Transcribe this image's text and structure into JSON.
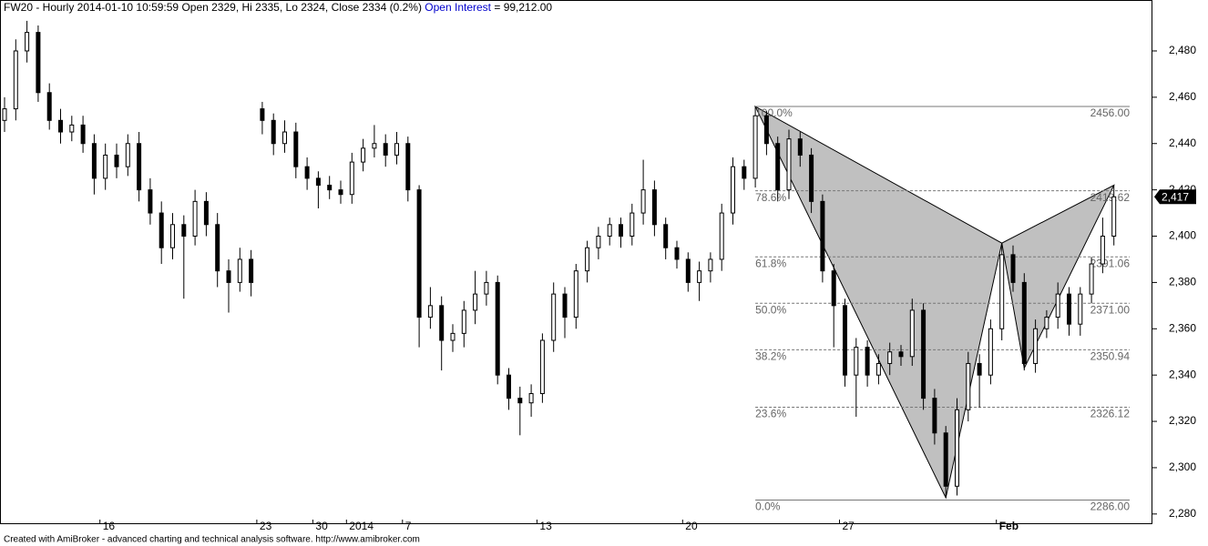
{
  "chart_data": {
    "type": "candlestick",
    "title": "FW20 - Hourly 2014-01-10 10:59:59 Open 2329, Hi 2335, Lo 2324, Close 2334 (0.2%)",
    "oi_label": "Open Interest",
    "oi_value": "= 99,212.00",
    "footer": "Created with AmiBroker - advanced charting and technical analysis software. http://www.amibroker.com",
    "categories": [
      null,
      null,
      null,
      null,
      null,
      null,
      null,
      null,
      null,
      "16",
      null,
      null,
      null,
      null,
      null,
      null,
      null,
      null,
      null,
      null,
      null,
      null,
      null,
      "23",
      null,
      null,
      null,
      null,
      "30",
      null,
      null,
      "2014",
      null,
      null,
      null,
      null,
      "7",
      null,
      null,
      null,
      null,
      null,
      null,
      null,
      null,
      null,
      null,
      null,
      "13",
      null,
      null,
      null,
      null,
      null,
      null,
      null,
      null,
      null,
      null,
      null,
      null,
      "20",
      null,
      null,
      null,
      null,
      null,
      null,
      null,
      null,
      null,
      null,
      null,
      null,
      null,
      "27",
      null,
      null,
      null,
      null,
      null,
      null,
      null,
      null,
      null,
      null,
      null,
      null,
      null,
      "Feb",
      null,
      null,
      null,
      null,
      null,
      null,
      null,
      null,
      null,
      null
    ],
    "open": [
      2450,
      2455,
      2480,
      2488,
      2462,
      2450,
      2445,
      2448,
      2440,
      2425,
      2435,
      2430,
      2440,
      2420,
      2410,
      2395,
      2405,
      2400,
      2415,
      2405,
      2385,
      2380,
      2390,
      2455,
      2450,
      2440,
      2445,
      2430,
      2425,
      2422,
      2420,
      2418,
      2432,
      2438,
      2440,
      2435,
      2440,
      2420,
      2365,
      2370,
      2355,
      2358,
      2368,
      2375,
      2380,
      2340,
      2330,
      2328,
      2332,
      2355,
      2375,
      2365,
      2385,
      2395,
      2400,
      2405,
      2400,
      2410,
      2420,
      2405,
      2395,
      2390,
      2380,
      2385,
      2390,
      2410,
      2430,
      2425,
      2452,
      2440,
      2420,
      2442,
      2435,
      2415,
      2385,
      2370,
      2340,
      2352,
      2340,
      2345,
      2350,
      2348,
      2368,
      2330,
      2315,
      2292,
      2325,
      2345,
      2340,
      2360,
      2392,
      2380,
      2345,
      2360,
      2365,
      2375,
      2362,
      2375,
      2388,
      2400
    ],
    "high": [
      2460,
      2485,
      2493,
      2491,
      2466,
      2455,
      2452,
      2452,
      2444,
      2440,
      2440,
      2444,
      2445,
      2425,
      2415,
      2410,
      2409,
      2420,
      2419,
      2410,
      2390,
      2395,
      2394,
      2458,
      2453,
      2450,
      2449,
      2434,
      2428,
      2426,
      2424,
      2436,
      2442,
      2448,
      2444,
      2445,
      2443,
      2422,
      2378,
      2374,
      2362,
      2372,
      2385,
      2385,
      2383,
      2343,
      2335,
      2336,
      2358,
      2380,
      2378,
      2388,
      2398,
      2404,
      2408,
      2408,
      2414,
      2433,
      2424,
      2408,
      2398,
      2393,
      2389,
      2393,
      2414,
      2434,
      2433,
      2456,
      2454,
      2443,
      2446,
      2445,
      2438,
      2418,
      2388,
      2373,
      2356,
      2355,
      2349,
      2354,
      2353,
      2373,
      2371,
      2334,
      2318,
      2330,
      2350,
      2349,
      2364,
      2397,
      2396,
      2384,
      2364,
      2368,
      2380,
      2378,
      2378,
      2391,
      2408,
      2422
    ],
    "low": [
      2445,
      2450,
      2475,
      2458,
      2446,
      2440,
      2441,
      2436,
      2418,
      2420,
      2425,
      2426,
      2415,
      2405,
      2388,
      2390,
      2373,
      2396,
      2400,
      2378,
      2367,
      2376,
      2374,
      2444,
      2435,
      2436,
      2425,
      2420,
      2412,
      2416,
      2414,
      2414,
      2428,
      2434,
      2430,
      2431,
      2415,
      2352,
      2360,
      2342,
      2350,
      2352,
      2362,
      2370,
      2336,
      2325,
      2314,
      2322,
      2328,
      2350,
      2356,
      2360,
      2380,
      2390,
      2396,
      2395,
      2396,
      2405,
      2400,
      2390,
      2386,
      2376,
      2372,
      2380,
      2385,
      2405,
      2420,
      2421,
      2435,
      2415,
      2416,
      2430,
      2410,
      2380,
      2352,
      2335,
      2322,
      2335,
      2336,
      2340,
      2344,
      2344,
      2325,
      2310,
      2287,
      2288,
      2320,
      2326,
      2336,
      2355,
      2376,
      2342,
      2341,
      2356,
      2360,
      2357,
      2357,
      2371,
      2384,
      2396
    ],
    "close": [
      2455,
      2480,
      2488,
      2462,
      2450,
      2445,
      2448,
      2440,
      2425,
      2435,
      2430,
      2440,
      2420,
      2410,
      2395,
      2405,
      2400,
      2415,
      2405,
      2385,
      2380,
      2390,
      2380,
      2450,
      2440,
      2445,
      2430,
      2425,
      2422,
      2420,
      2418,
      2432,
      2438,
      2440,
      2435,
      2440,
      2420,
      2365,
      2370,
      2355,
      2358,
      2368,
      2375,
      2380,
      2340,
      2330,
      2328,
      2332,
      2355,
      2375,
      2365,
      2385,
      2395,
      2400,
      2405,
      2400,
      2410,
      2420,
      2405,
      2395,
      2390,
      2380,
      2385,
      2390,
      2410,
      2430,
      2425,
      2452,
      2440,
      2420,
      2442,
      2435,
      2415,
      2385,
      2370,
      2340,
      2352,
      2340,
      2345,
      2350,
      2348,
      2368,
      2330,
      2315,
      2292,
      2325,
      2345,
      2340,
      2360,
      2392,
      2380,
      2345,
      2360,
      2365,
      2375,
      2362,
      2375,
      2388,
      2400,
      2417
    ],
    "color": "#000000",
    "ylim": [
      2276,
      2502
    ],
    "yticks": [
      {
        "value": 2280,
        "label": "2,280"
      },
      {
        "value": 2300,
        "label": "2,300"
      },
      {
        "value": 2320,
        "label": "2,320"
      },
      {
        "value": 2340,
        "label": "2,340"
      },
      {
        "value": 2360,
        "label": "2,360"
      },
      {
        "value": 2380,
        "label": "2,380"
      },
      {
        "value": 2400,
        "label": "2,400"
      },
      {
        "value": 2420,
        "label": "2,420"
      },
      {
        "value": 2440,
        "label": "2,440"
      },
      {
        "value": 2460,
        "label": "2,460"
      },
      {
        "value": 2480,
        "label": "2,480"
      }
    ],
    "last_price": {
      "value": 2417,
      "label": "2,417"
    },
    "fib_start": 67,
    "fib_levels": [
      {
        "pct": "100.0%",
        "value": 2456,
        "value_label": "2456.00"
      },
      {
        "pct": "78.6%",
        "value": 2419.62,
        "value_label": "2419.62"
      },
      {
        "pct": "61.8%",
        "value": 2391.06,
        "value_label": "2391.06"
      },
      {
        "pct": "50.0%",
        "value": 2371,
        "value_label": "2371.00"
      },
      {
        "pct": "38.2%",
        "value": 2350.94,
        "value_label": "2350.94"
      },
      {
        "pct": "23.6%",
        "value": 2326.12,
        "value_label": "2326.12"
      },
      {
        "pct": "0.0%",
        "value": 2286,
        "value_label": "2286.00"
      }
    ],
    "pattern": [
      {
        "x": 67,
        "value": 2456
      },
      {
        "x": 84,
        "value": 2287
      },
      {
        "x": 89,
        "value": 2397
      },
      {
        "x": 91,
        "value": 2343
      },
      {
        "x": 99,
        "value": 2422
      }
    ],
    "pattern_color": "#c0c0c0"
  }
}
